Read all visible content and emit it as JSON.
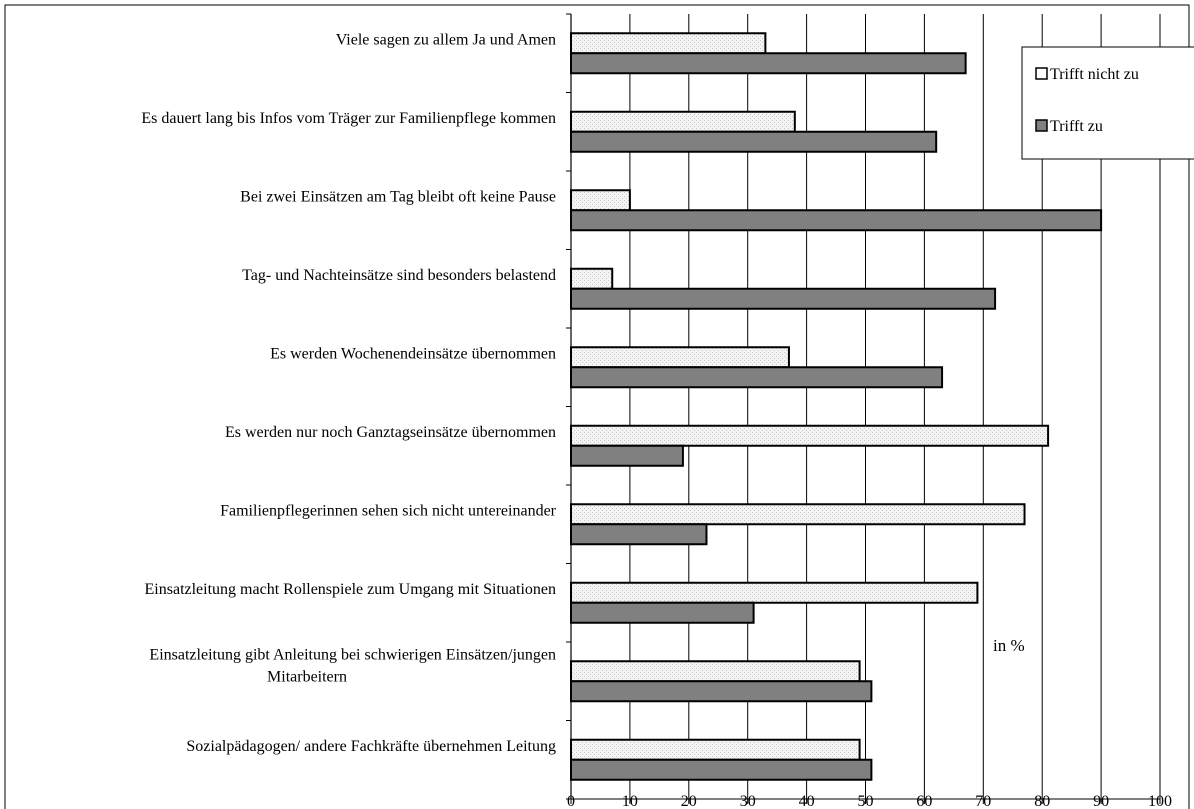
{
  "chart_data": {
    "type": "bar",
    "orientation": "horizontal",
    "title": "",
    "xlabel": "",
    "ylabel": "",
    "annotation": "in %",
    "xlim": [
      0,
      100
    ],
    "xticks": [
      "0",
      "10",
      "20",
      "30",
      "40",
      "50",
      "60",
      "70",
      "80",
      "90",
      "100"
    ],
    "grid": true,
    "legend_position": "top-right",
    "categories": [
      [
        "Viele sagen zu allem Ja und Amen"
      ],
      [
        "Es dauert lang bis Infos vom Träger zur Familienpflege kommen"
      ],
      [
        "Bei zwei Einsätzen am Tag bleibt oft keine Pause"
      ],
      [
        "Tag- und Nachteinsätze sind besonders belastend"
      ],
      [
        "Es werden Wochenendeinsätze übernommen"
      ],
      [
        "Es werden nur noch Ganztagseinsätze übernommen"
      ],
      [
        "Familienpflegerinnen sehen sich nicht untereinander"
      ],
      [
        "Einsatzleitung macht Rollenspiele zum Umgang mit Situationen"
      ],
      [
        "Einsatzleitung gibt Anleitung bei schwierigen Einsätzen/jungen",
        "Mitarbeitern"
      ],
      [
        "Sozialpädagogen/ andere Fachkräfte übernehmen Leitung"
      ]
    ],
    "series": [
      {
        "name": "Trifft nicht zu",
        "color": "#f2f2f2",
        "values": [
          33,
          38,
          10,
          7,
          37,
          81,
          77,
          69,
          49,
          49
        ]
      },
      {
        "name": "Trifft zu",
        "color": "#808080",
        "values": [
          67,
          62,
          90,
          72,
          63,
          19,
          23,
          31,
          51,
          51
        ]
      }
    ]
  }
}
